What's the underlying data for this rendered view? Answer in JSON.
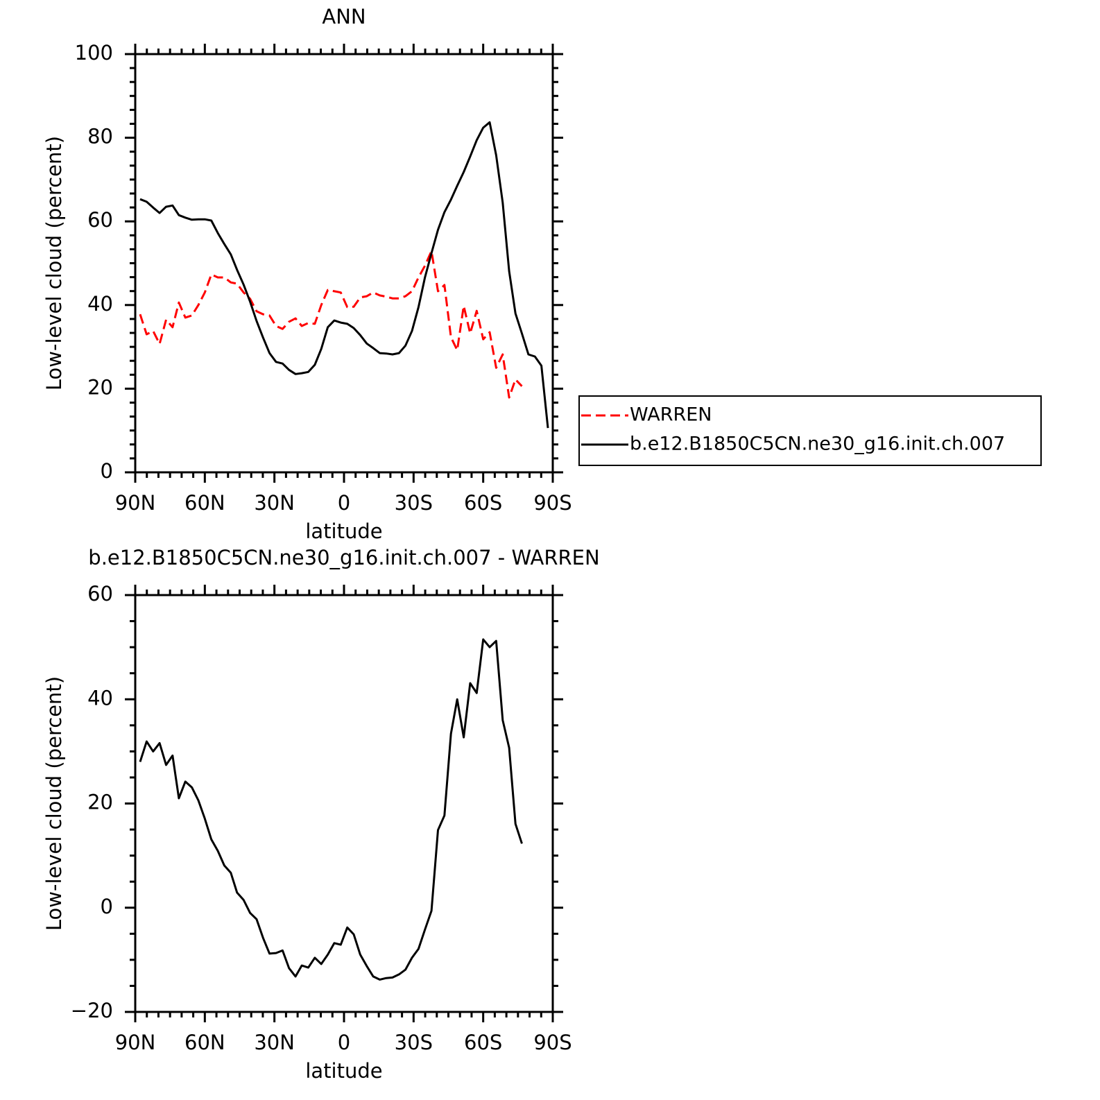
{
  "chart_data": [
    {
      "type": "line",
      "title": "ANN",
      "xlabel": "latitude",
      "ylabel": "Low-level cloud (percent)",
      "xlim": [
        90,
        -90
      ],
      "ylim": [
        0,
        100
      ],
      "xticks": [
        {
          "value": 90,
          "label": "90N"
        },
        {
          "value": 60,
          "label": "60N"
        },
        {
          "value": 30,
          "label": "30N"
        },
        0,
        {
          "value": -30,
          "label": "30S"
        },
        {
          "value": -60,
          "label": "60S"
        },
        {
          "value": -90,
          "label": "90S"
        }
      ],
      "yticks": [
        0,
        20,
        40,
        60,
        80,
        100
      ],
      "legend": "right",
      "series": [
        {
          "name": "WARREN",
          "color": "#ff0000",
          "linestyle": "dashed",
          "x": [
            87.9,
            85.1,
            82.3,
            79.5,
            76.7,
            73.9,
            71.2,
            68.4,
            65.6,
            62.8,
            60.0,
            57.2,
            54.4,
            51.6,
            48.8,
            46.1,
            43.3,
            40.5,
            37.7,
            34.9,
            32.1,
            29.3,
            26.5,
            23.7,
            20.9,
            18.2,
            15.4,
            12.6,
            9.8,
            7.0,
            4.2,
            1.4,
            -1.4,
            -4.2,
            -7.0,
            -9.8,
            -12.6,
            -15.4,
            -18.2,
            -20.9,
            -23.7,
            -26.5,
            -29.3,
            -32.1,
            -34.9,
            -37.7,
            -40.5,
            -43.3,
            -46.1,
            -48.8,
            -51.6,
            -54.4,
            -57.2,
            -60.0,
            -62.8,
            -65.6,
            -68.4,
            -71.2,
            -73.9,
            -76.7
          ],
          "values": [
            37.8,
            33.0,
            33.8,
            30.7,
            36.5,
            34.7,
            40.6,
            37.0,
            37.5,
            40.0,
            43.0,
            47.3,
            46.6,
            46.6,
            45.4,
            45.1,
            43.0,
            41.5,
            38.5,
            37.8,
            37.5,
            35.0,
            34.3,
            36.0,
            36.8,
            35.0,
            35.7,
            35.5,
            40.0,
            43.6,
            43.3,
            43.0,
            39.5,
            39.6,
            41.8,
            42.1,
            43.0,
            42.3,
            42.0,
            41.6,
            41.6,
            42.1,
            43.3,
            46.6,
            49.4,
            52.9,
            43.3,
            44.8,
            32.3,
            29.2,
            39.8,
            33.2,
            38.6,
            31.8,
            33.5,
            25.0,
            28.2,
            17.9,
            22.2,
            20.6
          ]
        },
        {
          "name": "b.e12.B1850C5CN.ne30_g16.init.ch.007",
          "color": "#000000",
          "linestyle": "solid",
          "x": [
            87.9,
            85.1,
            82.3,
            79.5,
            76.7,
            73.9,
            71.2,
            68.4,
            65.6,
            62.8,
            60.0,
            57.2,
            54.4,
            51.6,
            48.8,
            46.1,
            43.3,
            40.5,
            37.7,
            34.9,
            32.1,
            29.3,
            26.5,
            23.7,
            20.9,
            18.2,
            15.4,
            12.6,
            9.8,
            7.0,
            4.2,
            1.4,
            -1.4,
            -4.2,
            -7.0,
            -9.8,
            -12.6,
            -15.4,
            -18.2,
            -20.9,
            -23.7,
            -26.5,
            -29.3,
            -32.1,
            -34.9,
            -37.7,
            -40.5,
            -43.3,
            -46.1,
            -48.8,
            -51.6,
            -54.4,
            -57.2,
            -60.0,
            -62.8,
            -65.6,
            -68.4,
            -71.2,
            -73.9,
            -76.7,
            -79.5,
            -82.3,
            -85.1,
            -87.9
          ],
          "values": [
            65.3,
            64.7,
            63.3,
            62.0,
            63.5,
            63.8,
            61.5,
            60.9,
            60.4,
            60.5,
            60.5,
            60.2,
            57.2,
            54.6,
            52.1,
            48.4,
            44.9,
            40.8,
            36.2,
            32.2,
            28.5,
            26.4,
            26.0,
            24.5,
            23.5,
            23.7,
            24.0,
            25.7,
            29.5,
            34.7,
            36.3,
            35.8,
            35.5,
            34.5,
            32.8,
            30.8,
            29.7,
            28.5,
            28.4,
            28.2,
            28.5,
            30.3,
            33.8,
            39.5,
            46.6,
            52.4,
            58.0,
            62.2,
            65.2,
            68.5,
            71.8,
            75.5,
            79.4,
            82.4,
            83.7,
            75.8,
            64.5,
            48.1,
            38.0,
            33.2,
            28.2,
            27.7,
            25.5,
            10.6
          ]
        }
      ]
    },
    {
      "type": "line",
      "title": "b.e12.B1850C5CN.ne30_g16.init.ch.007 - WARREN",
      "xlabel": "latitude",
      "ylabel": "Low-level cloud (percent)",
      "xlim": [
        90,
        -90
      ],
      "ylim": [
        -20,
        60
      ],
      "xticks": [
        {
          "value": 90,
          "label": "90N"
        },
        {
          "value": 60,
          "label": "60N"
        },
        {
          "value": 30,
          "label": "30N"
        },
        0,
        {
          "value": -30,
          "label": "30S"
        },
        {
          "value": -60,
          "label": "60S"
        },
        {
          "value": -90,
          "label": "90S"
        }
      ],
      "yticks": [
        {
          "value": -20,
          "label": "−20"
        },
        0,
        20,
        40,
        60
      ],
      "series": [
        {
          "color": "#000000",
          "linestyle": "solid",
          "x": [
            87.9,
            85.1,
            82.3,
            79.5,
            76.7,
            73.9,
            71.2,
            68.4,
            65.6,
            62.8,
            60.0,
            57.2,
            54.4,
            51.6,
            48.8,
            46.1,
            43.3,
            40.5,
            37.7,
            34.9,
            32.1,
            29.3,
            26.5,
            23.7,
            20.9,
            18.2,
            15.4,
            12.6,
            9.8,
            7.0,
            4.2,
            1.4,
            -1.4,
            -4.2,
            -7.0,
            -9.8,
            -12.6,
            -15.4,
            -18.2,
            -20.9,
            -23.7,
            -26.5,
            -29.3,
            -32.1,
            -34.9,
            -37.7,
            -40.5,
            -43.3,
            -46.1,
            -48.8,
            -51.6,
            -54.4,
            -57.2,
            -60.0,
            -62.8,
            -65.6,
            -68.4,
            -71.2,
            -73.9,
            -76.7
          ],
          "values": [
            28.0,
            31.9,
            30.0,
            31.6,
            27.4,
            29.2,
            21.0,
            24.2,
            23.1,
            20.6,
            17.1,
            13.1,
            10.9,
            8.1,
            6.7,
            2.9,
            1.5,
            -1.0,
            -2.2,
            -5.8,
            -8.8,
            -8.7,
            -8.2,
            -11.6,
            -13.2,
            -11.1,
            -11.5,
            -9.6,
            -10.8,
            -9.0,
            -6.8,
            -7.1,
            -3.8,
            -5.1,
            -9.0,
            -11.2,
            -13.2,
            -13.8,
            -13.5,
            -13.4,
            -12.8,
            -11.9,
            -9.6,
            -7.9,
            -4.2,
            -0.6,
            14.9,
            17.7,
            33.4,
            40.0,
            32.7,
            43.1,
            41.2,
            51.5,
            50.0,
            51.2,
            36.0,
            30.7,
            16.1,
            12.3
          ]
        }
      ]
    }
  ]
}
